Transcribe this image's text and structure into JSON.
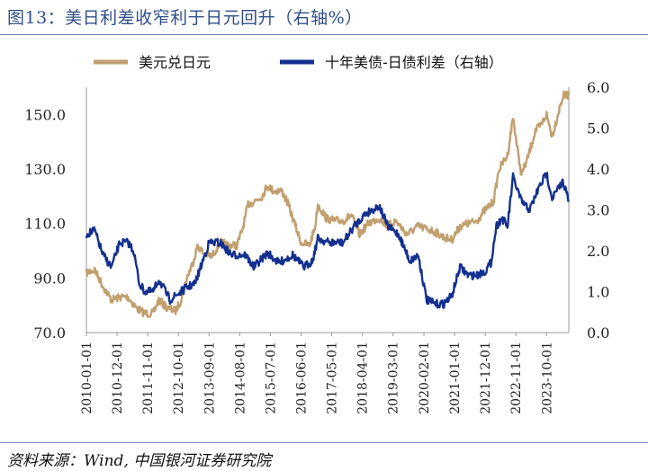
{
  "title": "图13：美日利差收窄利于日元回升（右轴%）",
  "source": "资料来源：Wind,   中国银河证券研究院",
  "colors": {
    "usdjpy": "#c19f6e",
    "spread": "#13308f",
    "rule": "#6f86b8",
    "title": "#2f4f8a"
  },
  "chart_data": {
    "type": "line",
    "title": "",
    "xlabel": "",
    "ylabel": "",
    "legend_position": "top",
    "grid": false,
    "x_ticks": [
      "2010-01-01",
      "2010-12-01",
      "2011-11-01",
      "2012-10-01",
      "2013-09-01",
      "2014-08-01",
      "2015-07-01",
      "2016-06-01",
      "2017-05-01",
      "2018-04-01",
      "2019-03-01",
      "2020-02-01",
      "2021-01-01",
      "2021-12-01",
      "2022-11-01",
      "2023-10-01"
    ],
    "x_range": [
      "2010-01-01",
      "2024-05-31"
    ],
    "y_left": {
      "range": [
        70,
        160
      ],
      "ticks": [
        "70.0",
        "90.0",
        "110.0",
        "130.0",
        "150.0"
      ]
    },
    "y_right": {
      "range": [
        0,
        6
      ],
      "ticks": [
        "0.0",
        "1.0",
        "2.0",
        "3.0",
        "4.0",
        "5.0",
        "6.0"
      ]
    },
    "series": [
      {
        "name": "美元兑日元",
        "axis": "left",
        "points": [
          [
            "2010-01-01",
            92
          ],
          [
            "2010-04-01",
            93
          ],
          [
            "2010-07-01",
            87
          ],
          [
            "2010-10-01",
            82
          ],
          [
            "2011-01-01",
            83
          ],
          [
            "2011-04-01",
            83
          ],
          [
            "2011-07-01",
            79
          ],
          [
            "2011-10-01",
            77
          ],
          [
            "2012-01-01",
            77
          ],
          [
            "2012-03-01",
            82
          ],
          [
            "2012-06-01",
            79
          ],
          [
            "2012-09-01",
            78
          ],
          [
            "2012-11-01",
            82
          ],
          [
            "2013-01-01",
            90
          ],
          [
            "2013-03-01",
            95
          ],
          [
            "2013-05-01",
            102
          ],
          [
            "2013-07-01",
            99
          ],
          [
            "2013-10-01",
            98
          ],
          [
            "2014-01-01",
            103
          ],
          [
            "2014-04-01",
            102
          ],
          [
            "2014-07-01",
            102
          ],
          [
            "2014-09-01",
            108
          ],
          [
            "2014-11-01",
            117
          ],
          [
            "2015-01-01",
            118
          ],
          [
            "2015-04-01",
            120
          ],
          [
            "2015-06-01",
            124
          ],
          [
            "2015-08-01",
            122
          ],
          [
            "2015-11-01",
            122
          ],
          [
            "2016-01-01",
            118
          ],
          [
            "2016-03-01",
            112
          ],
          [
            "2016-06-01",
            103
          ],
          [
            "2016-09-01",
            102
          ],
          [
            "2016-11-01",
            109
          ],
          [
            "2016-12-01",
            117
          ],
          [
            "2017-03-01",
            112
          ],
          [
            "2017-06-01",
            111
          ],
          [
            "2017-09-01",
            111
          ],
          [
            "2017-12-01",
            113
          ],
          [
            "2018-03-01",
            106
          ],
          [
            "2018-06-01",
            110
          ],
          [
            "2018-10-01",
            112
          ],
          [
            "2019-01-01",
            109
          ],
          [
            "2019-04-01",
            111
          ],
          [
            "2019-08-01",
            106
          ],
          [
            "2019-12-01",
            109
          ],
          [
            "2020-03-01",
            108
          ],
          [
            "2020-06-01",
            107
          ],
          [
            "2020-09-01",
            105
          ],
          [
            "2020-12-01",
            104
          ],
          [
            "2021-03-01",
            109
          ],
          [
            "2021-06-01",
            110
          ],
          [
            "2021-09-01",
            111
          ],
          [
            "2021-12-01",
            115
          ],
          [
            "2022-03-01",
            118
          ],
          [
            "2022-05-01",
            130
          ],
          [
            "2022-08-01",
            135
          ],
          [
            "2022-10-01",
            149
          ],
          [
            "2022-12-01",
            134
          ],
          [
            "2023-01-01",
            128
          ],
          [
            "2023-03-01",
            133
          ],
          [
            "2023-06-01",
            144
          ],
          [
            "2023-08-01",
            146
          ],
          [
            "2023-10-01",
            150
          ],
          [
            "2023-12-01",
            142
          ],
          [
            "2024-02-01",
            150
          ],
          [
            "2024-04-01",
            157
          ],
          [
            "2024-05-31",
            157
          ]
        ]
      },
      {
        "name": "十年美债-日债利差（右轴）",
        "axis": "right",
        "points": [
          [
            "2010-01-01",
            2.4
          ],
          [
            "2010-04-01",
            2.5
          ],
          [
            "2010-07-01",
            1.9
          ],
          [
            "2010-10-01",
            1.6
          ],
          [
            "2011-01-01",
            2.2
          ],
          [
            "2011-04-01",
            2.2
          ],
          [
            "2011-06-01",
            2.0
          ],
          [
            "2011-08-01",
            1.2
          ],
          [
            "2011-10-01",
            1.0
          ],
          [
            "2012-01-01",
            1.0
          ],
          [
            "2012-03-01",
            1.3
          ],
          [
            "2012-07-01",
            0.8
          ],
          [
            "2012-10-01",
            0.95
          ],
          [
            "2013-01-01",
            1.1
          ],
          [
            "2013-04-01",
            1.2
          ],
          [
            "2013-06-01",
            1.6
          ],
          [
            "2013-09-01",
            2.2
          ],
          [
            "2014-01-01",
            2.2
          ],
          [
            "2014-05-01",
            1.9
          ],
          [
            "2014-10-01",
            1.9
          ],
          [
            "2015-01-01",
            1.6
          ],
          [
            "2015-06-01",
            1.95
          ],
          [
            "2015-10-01",
            1.7
          ],
          [
            "2016-03-01",
            1.9
          ],
          [
            "2016-07-01",
            1.6
          ],
          [
            "2016-10-01",
            1.75
          ],
          [
            "2016-12-01",
            2.3
          ],
          [
            "2017-04-01",
            2.2
          ],
          [
            "2017-09-01",
            2.2
          ],
          [
            "2018-01-01",
            2.6
          ],
          [
            "2018-05-01",
            2.9
          ],
          [
            "2018-10-01",
            3.1
          ],
          [
            "2019-01-01",
            2.6
          ],
          [
            "2019-05-01",
            2.4
          ],
          [
            "2019-09-01",
            1.75
          ],
          [
            "2019-12-01",
            1.9
          ],
          [
            "2020-03-01",
            0.8
          ],
          [
            "2020-06-01",
            0.7
          ],
          [
            "2020-09-01",
            0.7
          ],
          [
            "2020-12-01",
            0.9
          ],
          [
            "2021-03-01",
            1.6
          ],
          [
            "2021-06-01",
            1.4
          ],
          [
            "2021-09-01",
            1.4
          ],
          [
            "2021-12-01",
            1.5
          ],
          [
            "2022-02-01",
            1.7
          ],
          [
            "2022-04-01",
            2.6
          ],
          [
            "2022-06-01",
            2.8
          ],
          [
            "2022-08-01",
            2.6
          ],
          [
            "2022-10-01",
            3.8
          ],
          [
            "2023-01-01",
            3.2
          ],
          [
            "2023-04-01",
            3.0
          ],
          [
            "2023-07-01",
            3.5
          ],
          [
            "2023-10-01",
            3.9
          ],
          [
            "2023-12-01",
            3.3
          ],
          [
            "2024-02-01",
            3.5
          ],
          [
            "2024-04-01",
            3.7
          ],
          [
            "2024-05-31",
            3.2
          ]
        ]
      }
    ]
  }
}
